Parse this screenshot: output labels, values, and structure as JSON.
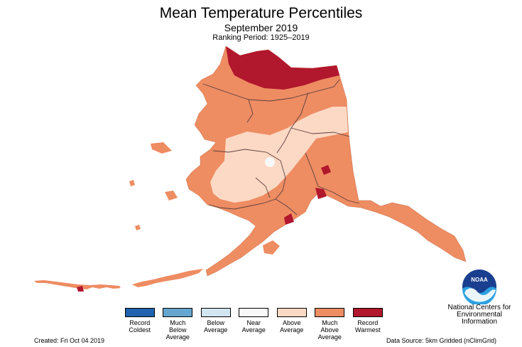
{
  "title": "Mean Temperature Percentiles",
  "subtitle": "September 2019",
  "ranking_period": "Ranking Period: 1925–2019",
  "legend": [
    {
      "label": "Record\nColdest",
      "color": "#1f62ad"
    },
    {
      "label": "Much\nBelow\nAverage",
      "color": "#65a6d0"
    },
    {
      "label": "Below\nAverage",
      "color": "#d2e6f2"
    },
    {
      "label": "Near\nAverage",
      "color": "#f8f8f8"
    },
    {
      "label": "Above\nAverage",
      "color": "#fcd9c4"
    },
    {
      "label": "Much\nAbove\nAverage",
      "color": "#ee8c62"
    },
    {
      "label": "Record\nWarmest",
      "color": "#b1172d"
    }
  ],
  "created": "Created: Fri Oct 04 2019",
  "data_source": "Data Source: 5km Gridded (nClimGrid)",
  "org_name": "National Centers for\nEnvironmental\nInformation",
  "logo_text": "NOAA",
  "colors": {
    "near_average": "#f8f8f8",
    "above_average": "#fcd9c4",
    "much_above_average": "#ee8c62",
    "record_warmest": "#b1172d",
    "boundary": "#5a4040"
  }
}
